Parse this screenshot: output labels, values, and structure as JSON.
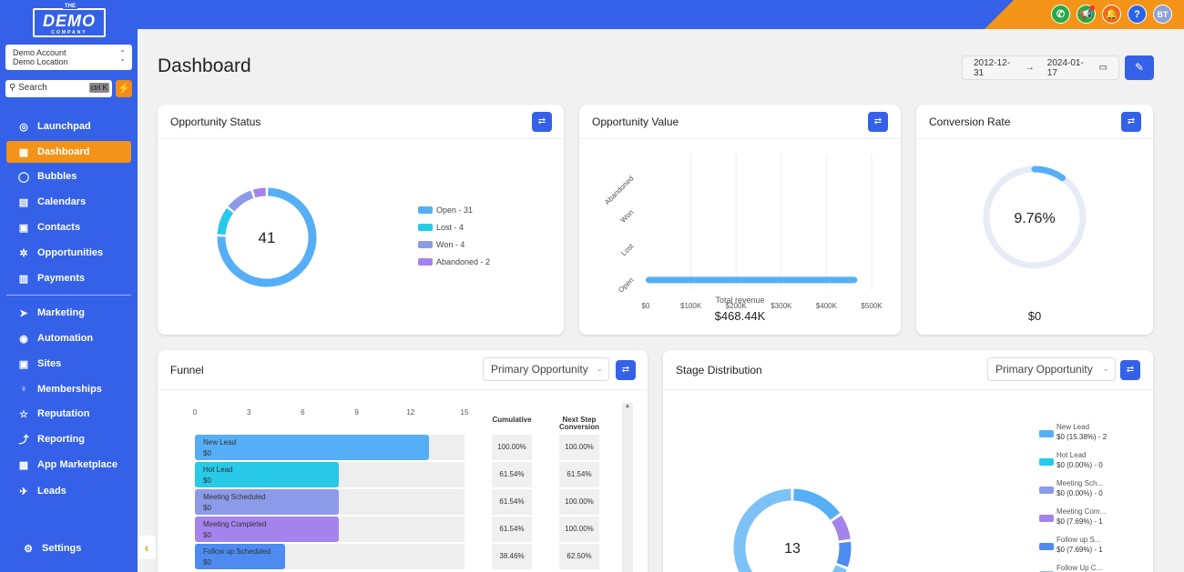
{
  "brand": {
    "the": "THE",
    "name": "DEMO",
    "sub": "COMPANY"
  },
  "account": {
    "name": "Demo Account",
    "location": "Demo Location"
  },
  "search": {
    "placeholder": "Search",
    "shortcut": "ctrl K"
  },
  "nav": [
    {
      "label": "Launchpad",
      "icon": "launchpad-icon"
    },
    {
      "label": "Dashboard",
      "icon": "dashboard-icon",
      "active": true
    },
    {
      "label": "Bubbles",
      "icon": "chat-icon"
    },
    {
      "label": "Calendars",
      "icon": "calendar-icon"
    },
    {
      "label": "Contacts",
      "icon": "contacts-icon"
    },
    {
      "label": "Opportunities",
      "icon": "opportunities-icon"
    },
    {
      "label": "Payments",
      "icon": "payments-icon"
    },
    {
      "label": "Marketing",
      "icon": "send-icon"
    },
    {
      "label": "Automation",
      "icon": "automation-icon"
    },
    {
      "label": "Sites",
      "icon": "sites-icon"
    },
    {
      "label": "Memberships",
      "icon": "memberships-icon"
    },
    {
      "label": "Reputation",
      "icon": "star-icon"
    },
    {
      "label": "Reporting",
      "icon": "reporting-icon"
    },
    {
      "label": "App Marketplace",
      "icon": "apps-icon"
    },
    {
      "label": "Leads",
      "icon": "leads-icon"
    }
  ],
  "settings_label": "Settings",
  "topbar": {
    "avatar": "BT"
  },
  "header": {
    "title": "Dashboard",
    "date_from": "2012-12-31",
    "date_to": "2024-01-17"
  },
  "opportunity_status": {
    "title": "Opportunity Status",
    "total": "41",
    "legend": [
      "Open - 31",
      "Lost - 4",
      "Won - 4",
      "Abandoned - 2"
    ],
    "values": [
      31,
      4,
      4,
      2
    ],
    "colors": [
      "#56aff6",
      "#29c9e8",
      "#8b9be8",
      "#a583ec"
    ]
  },
  "opportunity_value": {
    "title": "Opportunity Value",
    "total_label": "Total revenue",
    "total_value": "$468.44K",
    "chart_data": {
      "type": "bar",
      "orientation": "horizontal",
      "categories": [
        "Abandoned",
        "Won",
        "Lost",
        "Open"
      ],
      "values": [
        0,
        0,
        0,
        468440
      ],
      "xticks": [
        "$0",
        "$100K",
        "$200K",
        "$300K",
        "$400K",
        "$500K"
      ],
      "xlim": [
        0,
        500000
      ],
      "xlabel": "Total revenue"
    }
  },
  "conversion_rate": {
    "title": "Conversion Rate",
    "value": "9.76%",
    "fraction": 0.0976,
    "amount": "$0"
  },
  "funnel": {
    "title": "Funnel",
    "select": "Primary Opportunity",
    "axis": [
      "0",
      "3",
      "6",
      "9",
      "12",
      "15"
    ],
    "col_cumulative": "Cumulative",
    "col_next_1": "Next Step",
    "col_next_2": "Conversion",
    "rows": [
      {
        "name": "New Lead",
        "value": "$0",
        "count": 13,
        "color": "#56aff6",
        "cumulative": "100.00%",
        "next": "100.00%"
      },
      {
        "name": "Hot Lead",
        "value": "$0",
        "count": 8,
        "color": "#29c9e8",
        "cumulative": "61.54%",
        "next": "61.54%"
      },
      {
        "name": "Meeting Scheduled",
        "value": "$0",
        "count": 8,
        "color": "#8b9be8",
        "cumulative": "61.54%",
        "next": "100.00%"
      },
      {
        "name": "Meeting Completed",
        "value": "$0",
        "count": 8,
        "color": "#a583ec",
        "cumulative": "61.54%",
        "next": "100.00%"
      },
      {
        "name": "Follow up Scheduled",
        "value": "$0",
        "count": 5,
        "color": "#4d8bf0",
        "cumulative": "38.46%",
        "next": "62.50%"
      }
    ]
  },
  "stage_distribution": {
    "title": "Stage Distribution",
    "select": "Primary Opportunity",
    "total": "13",
    "legend": [
      {
        "name": "New Lead",
        "detail": "$0 (15.38%) - 2",
        "color": "#56aff6"
      },
      {
        "name": "Hot Lead",
        "detail": "$0 (0.00%) - 0",
        "color": "#29c9e8"
      },
      {
        "name": "Meeting Sch...",
        "detail": "$0 (0.00%) - 0",
        "color": "#8b9be8"
      },
      {
        "name": "Meeting Com...",
        "detail": "$0 (7.69%) - 1",
        "color": "#a583ec"
      },
      {
        "name": "Follow up S...",
        "detail": "$0 (7.69%) - 1",
        "color": "#4d8bf0"
      },
      {
        "name": "Follow Up C...",
        "detail": "",
        "color": "#7cc2f7"
      }
    ]
  }
}
